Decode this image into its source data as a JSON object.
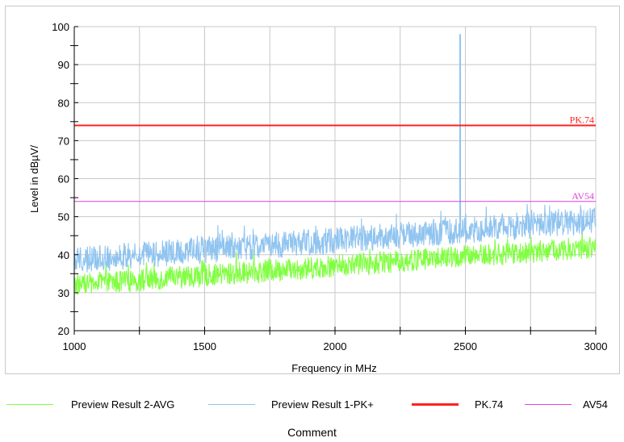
{
  "chart_data": {
    "type": "line",
    "xlabel": "Frequency in MHz",
    "ylabel": "Level in dBµV/",
    "xlim": [
      1000,
      3000
    ],
    "ylim": [
      20,
      100
    ],
    "x_ticks": [
      "1000",
      "1500",
      "2000",
      "2500",
      "3000"
    ],
    "y_ticks": [
      "20",
      "30",
      "40",
      "50",
      "60",
      "70",
      "80",
      "90",
      "100"
    ],
    "grid": true,
    "series": [
      {
        "name": "Preview Result 2-AVG",
        "color": "#80ff40",
        "kind": "noise",
        "start_level": 32,
        "end_level": 42,
        "band": 6
      },
      {
        "name": "Preview Result 1-PK+",
        "color": "#90c4f0",
        "kind": "noise",
        "start_level": 38.5,
        "end_level": 49,
        "band": 7,
        "spike": {
          "x": 2480,
          "y": 98
        }
      },
      {
        "name": "PK.74",
        "color": "#ff2020",
        "kind": "limit",
        "value": 74,
        "label": "PK.74"
      },
      {
        "name": "AV54",
        "color": "#e040e0",
        "kind": "limit",
        "value": 54,
        "label": "AV54"
      }
    ]
  },
  "comment": "Comment"
}
